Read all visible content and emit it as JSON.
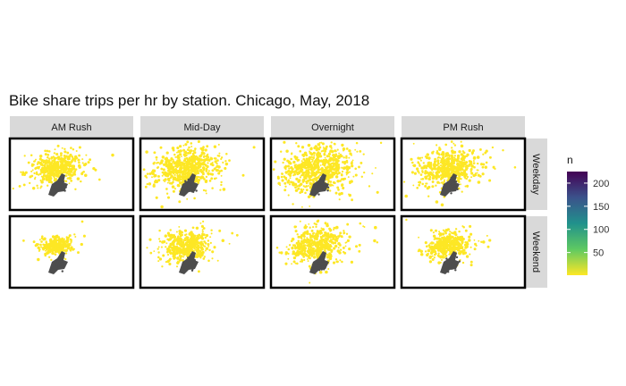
{
  "chart_data": {
    "type": "scatter",
    "title": "Bike share trips per hr by station. Chicago, May, 2018",
    "facet_columns": [
      "AM Rush",
      "Mid-Day",
      "Overnight",
      "PM Rush"
    ],
    "facet_rows": [
      "Weekday",
      "Weekend"
    ],
    "legend": {
      "title": "n",
      "placement": "right",
      "ticks": [
        50,
        100,
        150,
        200
      ],
      "range": [
        1,
        225
      ],
      "colormap": "viridis (reversed: high = dark purple, low = yellow)"
    },
    "grid": false,
    "point_color": "#fde725",
    "region_color": "#4d4d4d",
    "frame_color": "#000000",
    "strip_color": "#d9d9d9",
    "panel_spread": [
      [
        0.85,
        1.15,
        1.3,
        1.05
      ],
      [
        0.55,
        0.85,
        1.0,
        0.75
      ]
    ]
  }
}
